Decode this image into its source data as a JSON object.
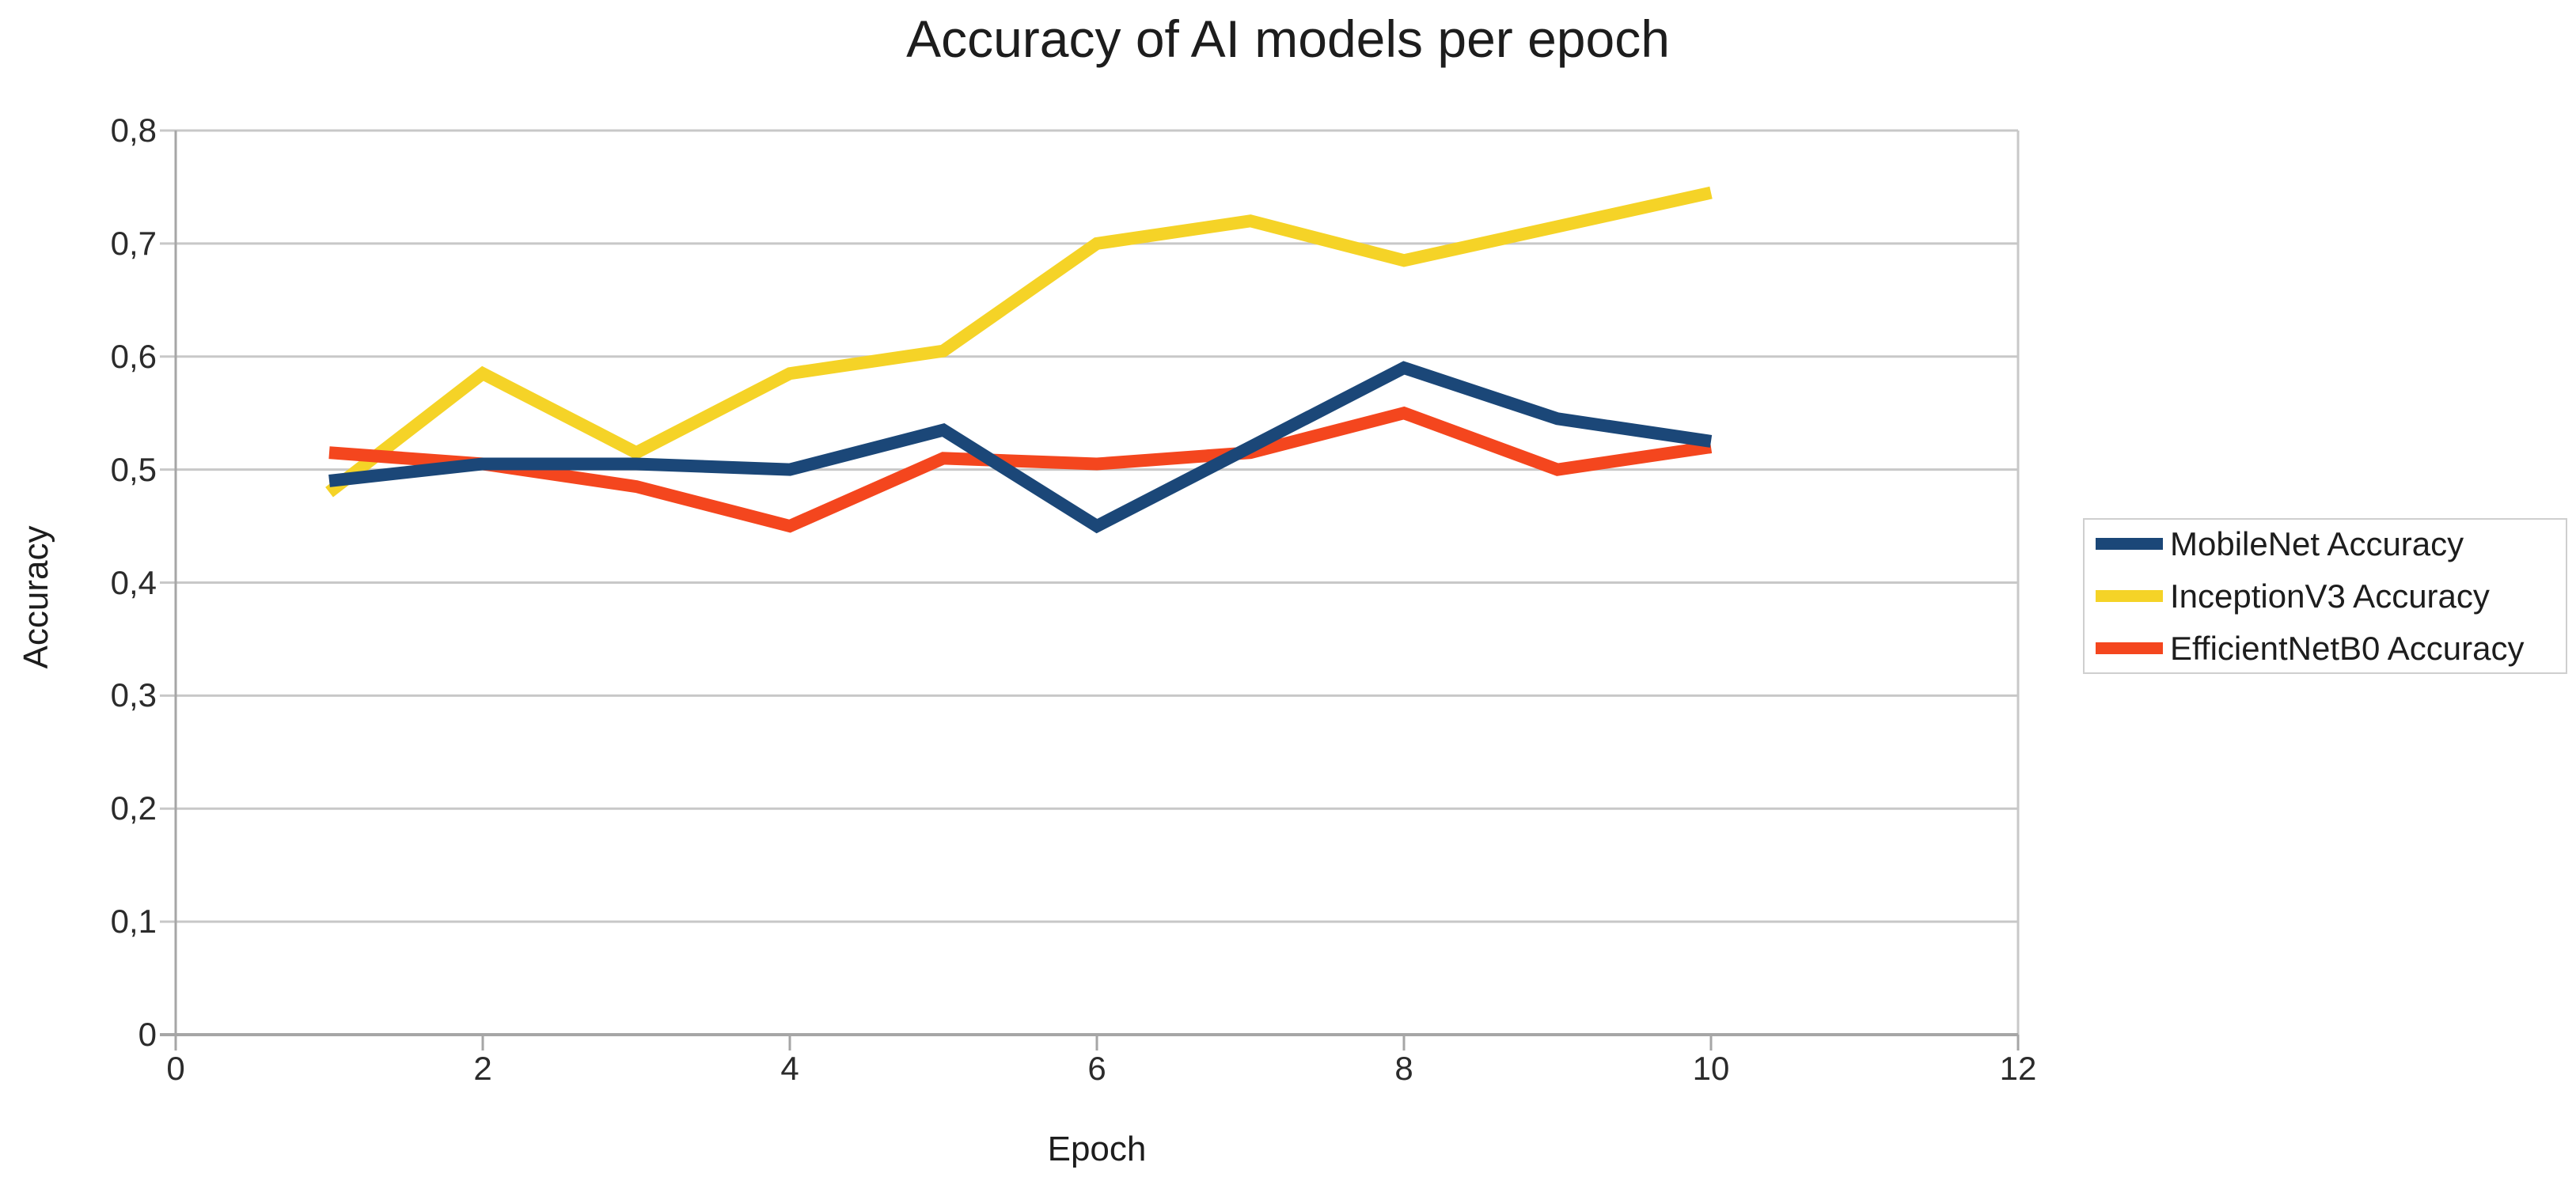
{
  "page": {
    "background_color": "#ffffff"
  },
  "chart_data": {
    "type": "line",
    "title": "Accuracy of AI models per epoch",
    "xlabel": "Epoch",
    "ylabel": "Accuracy",
    "xlim": [
      0,
      12
    ],
    "ylim": [
      0,
      0.8
    ],
    "x_ticks": [
      0,
      2,
      4,
      6,
      8,
      10,
      12
    ],
    "x_tick_labels": [
      "0",
      "2",
      "4",
      "6",
      "8",
      "10",
      "12"
    ],
    "y_ticks": [
      0,
      0.1,
      0.2,
      0.3,
      0.4,
      0.5,
      0.6,
      0.7,
      0.8
    ],
    "y_tick_labels": [
      "0",
      "0,1",
      "0,2",
      "0,3",
      "0,4",
      "0,5",
      "0,6",
      "0,7",
      "0,8"
    ],
    "grid": "horizontal-only",
    "legend_position": "right",
    "x": [
      1,
      2,
      3,
      4,
      5,
      6,
      7,
      8,
      9,
      10
    ],
    "series": [
      {
        "name": "MobileNet Accuracy",
        "color": "#1B4778",
        "values": [
          0.49,
          0.505,
          0.505,
          0.5,
          0.535,
          0.45,
          0.52,
          0.59,
          0.545,
          0.525
        ]
      },
      {
        "name": "InceptionV3 Accuracy",
        "color": "#F5D327",
        "values": [
          0.48,
          0.585,
          0.515,
          0.585,
          0.605,
          0.7,
          0.72,
          0.685,
          0.715,
          0.745
        ]
      },
      {
        "name": "EfficientNetB0 Accuracy",
        "color": "#F4461E",
        "values": [
          0.515,
          0.505,
          0.485,
          0.45,
          0.51,
          0.505,
          0.515,
          0.55,
          0.5,
          0.52
        ]
      }
    ],
    "draw_order": [
      1,
      2,
      0
    ],
    "line_width": 16,
    "colors": {
      "gridline": "#c8c8c8",
      "axis": "#a6a6a6",
      "tick_text": "#2b2b2b",
      "title_text": "#1d1d1d",
      "legend_border": "#cfcfcf"
    }
  }
}
